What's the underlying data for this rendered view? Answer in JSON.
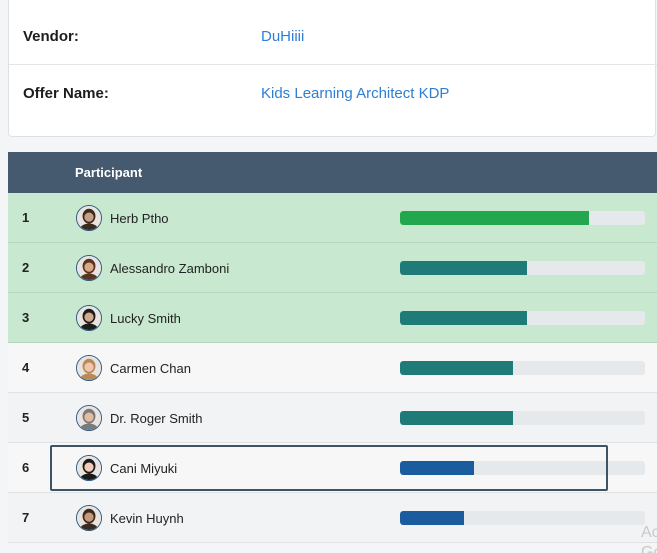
{
  "info": {
    "vendor_label": "Vendor:",
    "vendor_value": "DuHiiii",
    "offer_label": "Offer Name:",
    "offer_value": "Kids Learning Architect KDP"
  },
  "table": {
    "header_participant": "Participant",
    "rows": [
      {
        "rank": "1",
        "name": "Herb Ptho",
        "progress": 0.77,
        "color": "#22a74f",
        "hair": "#3a2a20",
        "skin": "#c89f84"
      },
      {
        "rank": "2",
        "name": "Alessandro Zamboni",
        "progress": 0.52,
        "color": "#1e7b77",
        "hair": "#5a3420",
        "skin": "#d7a987"
      },
      {
        "rank": "3",
        "name": "Lucky Smith",
        "progress": 0.52,
        "color": "#1e7b77",
        "hair": "#1c1c1c",
        "skin": "#d2a98c"
      },
      {
        "rank": "4",
        "name": "Carmen Chan",
        "progress": 0.46,
        "color": "#1e7b77",
        "hair": "#b88a5a",
        "skin": "#f0c6ae"
      },
      {
        "rank": "5",
        "name": "Dr. Roger Smith",
        "progress": 0.46,
        "color": "#1e7b77",
        "hair": "#7a7a7a",
        "skin": "#e3bca2"
      },
      {
        "rank": "6",
        "name": "Cani Miyuki",
        "progress": 0.3,
        "color": "#1b5c9e",
        "hair": "#1a1a1a",
        "skin": "#f2cbb8"
      },
      {
        "rank": "7",
        "name": "Kevin Huynh",
        "progress": 0.26,
        "color": "#1b5c9e",
        "hair": "#3b2b1e",
        "skin": "#c69a79"
      }
    ]
  },
  "watermark": "Ac\nGo"
}
